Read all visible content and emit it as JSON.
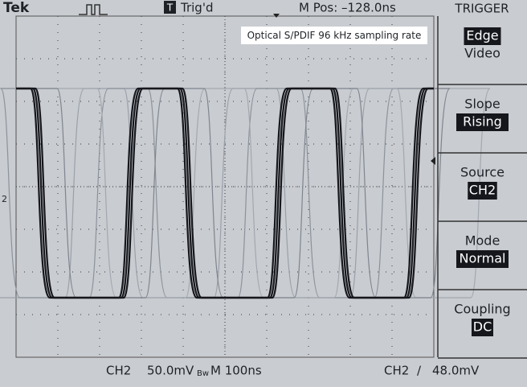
{
  "header": {
    "brand": "Tek",
    "trigger_icon": "T",
    "trigger_state": "Trig'd",
    "position": "M Pos: –128.0ns",
    "menu_title": "TRIGGER"
  },
  "annotation": "Optical S/PDIF  96 kHz sampling rate",
  "channel_marker": "2",
  "menu": [
    {
      "label": "Edge",
      "value": "Video",
      "highlight": "label"
    },
    {
      "label": "Slope",
      "value": "Rising",
      "highlight": "value"
    },
    {
      "label": "Source",
      "value": "CH2",
      "highlight": "value"
    },
    {
      "label": "Mode",
      "value": "Normal",
      "highlight": "value"
    },
    {
      "label": "Coupling",
      "value": "DC",
      "highlight": "value"
    }
  ],
  "footer": {
    "channel": "CH2",
    "scale": "50.0mV",
    "bandwidth": "Bw",
    "timebase": "M 100ns",
    "trigger_channel": "CH2",
    "trigger_slope": "∕",
    "trigger_level": "48.0mV"
  }
}
